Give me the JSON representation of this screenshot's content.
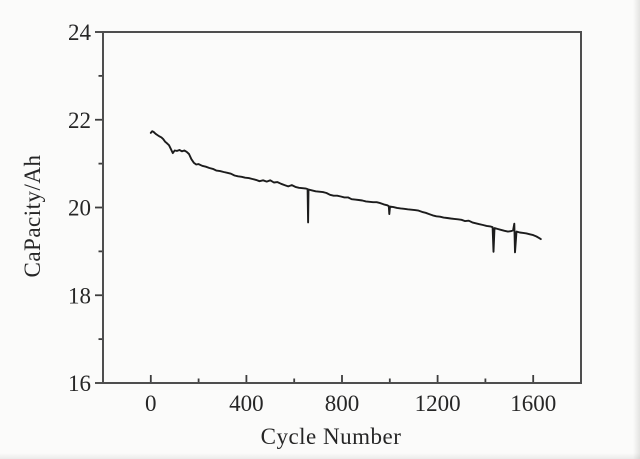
{
  "figure": {
    "background": "#fbfbfa",
    "frame_color": "#4e4e4e",
    "tick_color": "#3d3d3d",
    "line_color": "#1c1c1c",
    "text_color": "#262626"
  },
  "chart_data": {
    "type": "line",
    "title": "",
    "xlabel": "Cycle Number",
    "ylabel": "CaPacity/Ah",
    "xlim": [
      -200,
      1800
    ],
    "ylim": [
      16,
      24
    ],
    "x_major_ticks": [
      0,
      400,
      800,
      1200,
      1600
    ],
    "x_minor_ticks": [
      200,
      600,
      1000,
      1400,
      1800
    ],
    "y_major_ticks": [
      16,
      18,
      20,
      22,
      24
    ],
    "y_minor_ticks": [
      17,
      19,
      21,
      23
    ],
    "grid": false,
    "legend": null,
    "series": [
      {
        "name": "capacity",
        "color": "#1c1c1c",
        "points": [
          [
            0,
            21.7
          ],
          [
            6,
            21.74
          ],
          [
            12,
            21.72
          ],
          [
            20,
            21.68
          ],
          [
            28,
            21.65
          ],
          [
            36,
            21.62
          ],
          [
            44,
            21.6
          ],
          [
            52,
            21.56
          ],
          [
            60,
            21.5
          ],
          [
            68,
            21.46
          ],
          [
            76,
            21.42
          ],
          [
            84,
            21.33
          ],
          [
            92,
            21.24
          ],
          [
            100,
            21.3
          ],
          [
            110,
            21.29
          ],
          [
            120,
            21.31
          ],
          [
            130,
            21.28
          ],
          [
            140,
            21.3
          ],
          [
            150,
            21.27
          ],
          [
            160,
            21.22
          ],
          [
            170,
            21.1
          ],
          [
            180,
            21.02
          ],
          [
            190,
            20.98
          ],
          [
            200,
            20.99
          ],
          [
            215,
            20.95
          ],
          [
            230,
            20.93
          ],
          [
            245,
            20.9
          ],
          [
            260,
            20.88
          ],
          [
            275,
            20.84
          ],
          [
            290,
            20.83
          ],
          [
            305,
            20.81
          ],
          [
            320,
            20.79
          ],
          [
            335,
            20.77
          ],
          [
            350,
            20.73
          ],
          [
            365,
            20.71
          ],
          [
            380,
            20.7
          ],
          [
            395,
            20.68
          ],
          [
            410,
            20.67
          ],
          [
            425,
            20.65
          ],
          [
            440,
            20.63
          ],
          [
            455,
            20.6
          ],
          [
            470,
            20.62
          ],
          [
            485,
            20.59
          ],
          [
            500,
            20.62
          ],
          [
            515,
            20.57
          ],
          [
            530,
            20.58
          ],
          [
            545,
            20.54
          ],
          [
            560,
            20.51
          ],
          [
            575,
            20.48
          ],
          [
            590,
            20.51
          ],
          [
            605,
            20.47
          ],
          [
            620,
            20.45
          ],
          [
            635,
            20.44
          ],
          [
            650,
            20.43
          ],
          [
            656,
            20.42
          ],
          [
            658,
            19.66
          ],
          [
            660,
            20.41
          ],
          [
            675,
            20.39
          ],
          [
            690,
            20.37
          ],
          [
            705,
            20.36
          ],
          [
            720,
            20.35
          ],
          [
            735,
            20.33
          ],
          [
            750,
            20.29
          ],
          [
            765,
            20.27
          ],
          [
            780,
            20.27
          ],
          [
            795,
            20.25
          ],
          [
            810,
            20.23
          ],
          [
            825,
            20.23
          ],
          [
            840,
            20.19
          ],
          [
            855,
            20.18
          ],
          [
            870,
            20.17
          ],
          [
            885,
            20.16
          ],
          [
            900,
            20.14
          ],
          [
            915,
            20.13
          ],
          [
            930,
            20.12
          ],
          [
            945,
            20.12
          ],
          [
            960,
            20.1
          ],
          [
            975,
            20.07
          ],
          [
            990,
            20.05
          ],
          [
            996,
            20.03
          ],
          [
            998,
            19.85
          ],
          [
            1001,
            20.02
          ],
          [
            1015,
            20.01
          ],
          [
            1030,
            19.99
          ],
          [
            1045,
            19.98
          ],
          [
            1060,
            19.97
          ],
          [
            1075,
            19.96
          ],
          [
            1090,
            19.95
          ],
          [
            1105,
            19.94
          ],
          [
            1120,
            19.93
          ],
          [
            1135,
            19.9
          ],
          [
            1150,
            19.88
          ],
          [
            1165,
            19.85
          ],
          [
            1180,
            19.82
          ],
          [
            1195,
            19.8
          ],
          [
            1210,
            19.79
          ],
          [
            1225,
            19.77
          ],
          [
            1240,
            19.76
          ],
          [
            1255,
            19.75
          ],
          [
            1270,
            19.74
          ],
          [
            1285,
            19.73
          ],
          [
            1300,
            19.72
          ],
          [
            1315,
            19.69
          ],
          [
            1330,
            19.7
          ],
          [
            1345,
            19.66
          ],
          [
            1360,
            19.64
          ],
          [
            1375,
            19.62
          ],
          [
            1390,
            19.6
          ],
          [
            1405,
            19.58
          ],
          [
            1420,
            19.57
          ],
          [
            1430,
            19.55
          ],
          [
            1434,
            18.99
          ],
          [
            1438,
            19.53
          ],
          [
            1452,
            19.51
          ],
          [
            1466,
            19.49
          ],
          [
            1480,
            19.47
          ],
          [
            1494,
            19.45
          ],
          [
            1506,
            19.46
          ],
          [
            1516,
            19.48
          ],
          [
            1521,
            19.63
          ],
          [
            1524,
            18.98
          ],
          [
            1530,
            19.45
          ],
          [
            1544,
            19.43
          ],
          [
            1558,
            19.42
          ],
          [
            1572,
            19.41
          ],
          [
            1586,
            19.39
          ],
          [
            1600,
            19.37
          ],
          [
            1614,
            19.34
          ],
          [
            1626,
            19.3
          ],
          [
            1632,
            19.28
          ]
        ]
      }
    ]
  }
}
